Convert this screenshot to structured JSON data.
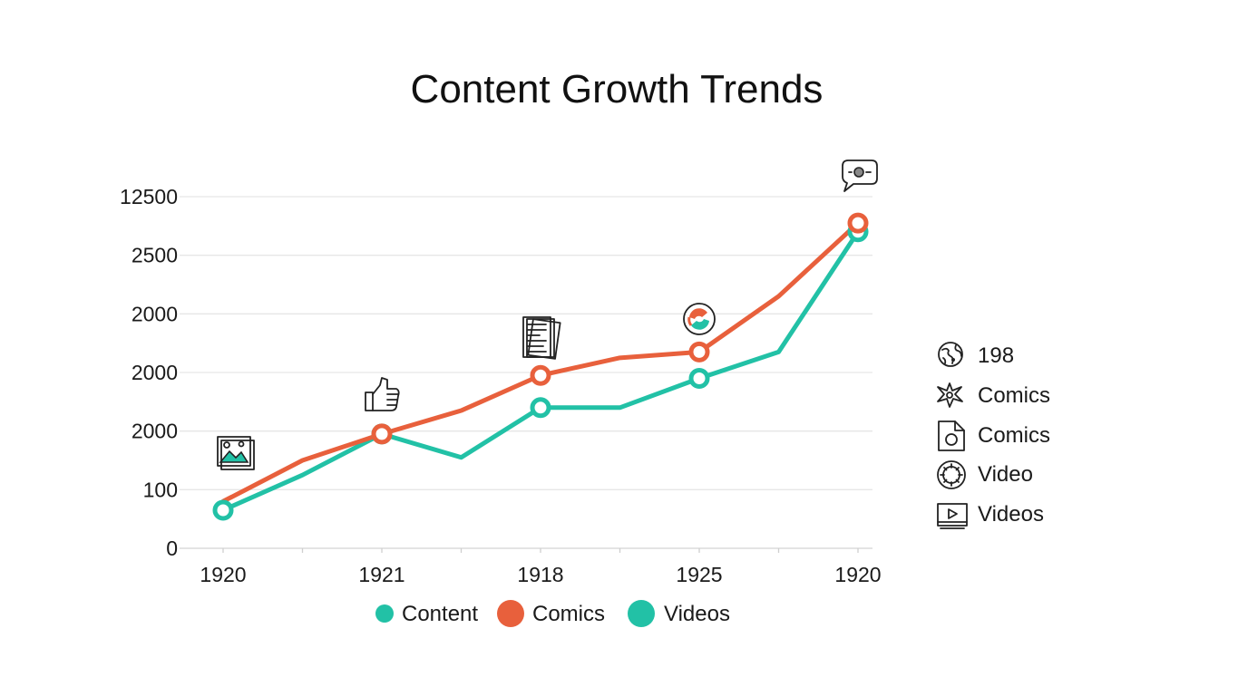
{
  "chart_data": {
    "type": "line",
    "title": "Content Growth Trends",
    "y_tick_labels": [
      "0",
      "100",
      "2000",
      "2000",
      "2000",
      "2500",
      "12500"
    ],
    "x_tick_labels": [
      "1920",
      "1921",
      "1918",
      "1925",
      "1920"
    ],
    "grid": true,
    "series": [
      {
        "name": "Comics",
        "color": "#e8603c",
        "values": [
          0.8,
          1.5,
          1.95,
          2.35,
          2.95,
          3.25,
          3.35,
          4.3,
          5.55
        ]
      },
      {
        "name": "Videos",
        "color": "#22c1a6",
        "values": [
          0.65,
          1.25,
          1.95,
          1.55,
          2.4,
          2.4,
          2.9,
          3.35,
          5.4
        ]
      }
    ],
    "legend": [
      {
        "label": "Content",
        "color": "#22c1a6",
        "marker": "small-dot"
      },
      {
        "label": "Comics",
        "color": "#e8603c",
        "marker": "large-dot"
      },
      {
        "label": "Videos",
        "color": "#22c1a6",
        "marker": "large-dot"
      }
    ],
    "legend_position": "bottom"
  },
  "side_legend": [
    {
      "icon": "globe-icon",
      "label": "198"
    },
    {
      "icon": "star-burst-icon",
      "label": "Comics"
    },
    {
      "icon": "document-icon",
      "label": "Comics"
    },
    {
      "icon": "gear-ring-icon",
      "label": "Video"
    },
    {
      "icon": "video-player-icon",
      "label": "Videos"
    }
  ],
  "annotations": [
    {
      "icon": "image-gallery-icon"
    },
    {
      "icon": "thumbs-up-icon"
    },
    {
      "icon": "newspaper-icon"
    },
    {
      "icon": "swirl-logo-icon"
    },
    {
      "icon": "chat-bubble-icon"
    }
  ]
}
